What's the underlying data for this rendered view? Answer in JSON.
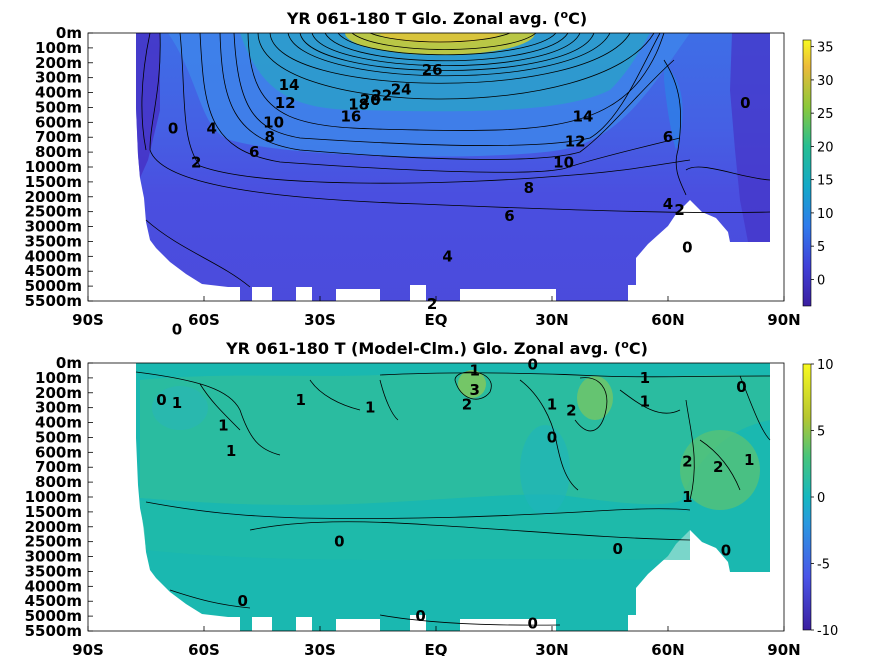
{
  "chart_data": [
    {
      "type": "heatmap",
      "title_main": "YR 061-180 T Glo. Zonal avg. (",
      "title_sup": "o",
      "title_end": "C)",
      "x_ticks": [
        "90S",
        "60S",
        "30S",
        "EQ",
        "30N",
        "60N",
        "90N"
      ],
      "x_values": [
        -90,
        -60,
        -30,
        0,
        30,
        60,
        90
      ],
      "y_ticks": [
        "0m",
        "100m",
        "200m",
        "300m",
        "400m",
        "500m",
        "600m",
        "700m",
        "800m",
        "1000m",
        "1500m",
        "2000m",
        "2500m",
        "3000m",
        "3500m",
        "4000m",
        "4500m",
        "5000m",
        "5500m"
      ],
      "colorbar": {
        "min": -4,
        "max": 36,
        "ticks": [
          0,
          5,
          10,
          15,
          20,
          25,
          30,
          35
        ]
      },
      "contour_labels": [
        {
          "text": "26",
          "lat": -1,
          "depth": 2.5
        },
        {
          "text": "24",
          "lat": -9,
          "depth": 3.8
        },
        {
          "text": "22",
          "lat": -14,
          "depth": 4.2
        },
        {
          "text": "20",
          "lat": -17,
          "depth": 4.5
        },
        {
          "text": "18",
          "lat": -20,
          "depth": 4.8
        },
        {
          "text": "16",
          "lat": -22,
          "depth": 5.6
        },
        {
          "text": "14",
          "lat": -38,
          "depth": 3.5
        },
        {
          "text": "12",
          "lat": -39,
          "depth": 4.7
        },
        {
          "text": "10",
          "lat": -42,
          "depth": 6.0
        },
        {
          "text": "8",
          "lat": -43,
          "depth": 7.0
        },
        {
          "text": "6",
          "lat": -47,
          "depth": 8.0
        },
        {
          "text": "4",
          "lat": -58,
          "depth": 6.4
        },
        {
          "text": "2",
          "lat": -62,
          "depth": 8.7
        },
        {
          "text": "0",
          "lat": -68,
          "depth": 6.4
        },
        {
          "text": "14",
          "lat": 38,
          "depth": 5.6
        },
        {
          "text": "12",
          "lat": 36,
          "depth": 7.3
        },
        {
          "text": "10",
          "lat": 33,
          "depth": 8.7
        },
        {
          "text": "8",
          "lat": 24,
          "depth": 10.4
        },
        {
          "text": "6",
          "lat": 19,
          "depth": 12.3
        },
        {
          "text": "4",
          "lat": 3,
          "depth": 15.0
        },
        {
          "text": "2",
          "lat": -1,
          "depth": 18.2
        },
        {
          "text": "0",
          "lat": -67,
          "depth": 19.9
        },
        {
          "text": "0",
          "lat": -52,
          "depth": 22.7
        },
        {
          "text": "6",
          "lat": 60,
          "depth": 7.0
        },
        {
          "text": "4",
          "lat": 60,
          "depth": 11.5
        },
        {
          "text": "2",
          "lat": 63,
          "depth": 11.9
        },
        {
          "text": "0",
          "lat": 65,
          "depth": 14.4
        },
        {
          "text": "0",
          "lat": 80,
          "depth": 4.7
        }
      ]
    },
    {
      "type": "heatmap",
      "title_main": "YR 061-180 T (Model-Clm.) Glo. Zonal avg. (",
      "title_sup": "o",
      "title_end": "C)",
      "x_ticks": [
        "90S",
        "60S",
        "30S",
        "EQ",
        "30N",
        "60N",
        "90N"
      ],
      "x_values": [
        -90,
        -60,
        -30,
        0,
        30,
        60,
        90
      ],
      "y_ticks": [
        "0m",
        "100m",
        "200m",
        "300m",
        "400m",
        "500m",
        "600m",
        "700m",
        "800m",
        "1000m",
        "1500m",
        "2000m",
        "2500m",
        "3000m",
        "3500m",
        "4000m",
        "4500m",
        "5000m",
        "5500m"
      ],
      "colorbar": {
        "min": -10,
        "max": 10,
        "ticks": [
          -10,
          -5,
          0,
          5,
          10
        ]
      },
      "contour_labels": [
        {
          "text": "0",
          "lat": -71,
          "depth": 2.5
        },
        {
          "text": "1",
          "lat": -67,
          "depth": 2.7
        },
        {
          "text": "1",
          "lat": -55,
          "depth": 4.2
        },
        {
          "text": "1",
          "lat": -53,
          "depth": 5.9
        },
        {
          "text": "1",
          "lat": -35,
          "depth": 2.5
        },
        {
          "text": "1",
          "lat": -17,
          "depth": 3.0
        },
        {
          "text": "1",
          "lat": 10,
          "depth": 0.5
        },
        {
          "text": "3",
          "lat": 10,
          "depth": 1.8
        },
        {
          "text": "2",
          "lat": 8,
          "depth": 2.8
        },
        {
          "text": "0",
          "lat": 25,
          "depth": 0.1
        },
        {
          "text": "1",
          "lat": 30,
          "depth": 2.8
        },
        {
          "text": "2",
          "lat": 35,
          "depth": 3.2
        },
        {
          "text": "1",
          "lat": 54,
          "depth": 1.0
        },
        {
          "text": "1",
          "lat": 54,
          "depth": 2.6
        },
        {
          "text": "0",
          "lat": 30,
          "depth": 5.0
        },
        {
          "text": "2",
          "lat": 65,
          "depth": 6.6
        },
        {
          "text": "2",
          "lat": 73,
          "depth": 7.0
        },
        {
          "text": "1",
          "lat": 65,
          "depth": 9.0
        },
        {
          "text": "0",
          "lat": 79,
          "depth": 1.6
        },
        {
          "text": "1",
          "lat": 81,
          "depth": 6.5
        },
        {
          "text": "0",
          "lat": -25,
          "depth": 12.0
        },
        {
          "text": "0",
          "lat": 47,
          "depth": 12.5
        },
        {
          "text": "0",
          "lat": 75,
          "depth": 12.6
        },
        {
          "text": "0",
          "lat": -50,
          "depth": 16.0
        },
        {
          "text": "0",
          "lat": -4,
          "depth": 17.0
        },
        {
          "text": "0",
          "lat": 25,
          "depth": 17.5
        }
      ]
    }
  ]
}
